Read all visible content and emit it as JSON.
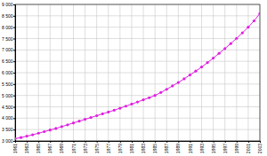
{
  "chart_data": {
    "type": "line",
    "x": [
      1961,
      1962,
      1963,
      1964,
      1965,
      1966,
      1967,
      1968,
      1969,
      1970,
      1971,
      1972,
      1973,
      1974,
      1975,
      1976,
      1977,
      1978,
      1979,
      1980,
      1981,
      1982,
      1983,
      1984,
      1985,
      1986,
      1987,
      1988,
      1989,
      1990,
      1991,
      1992,
      1993,
      1994,
      1995,
      1996,
      1997,
      1998,
      1999,
      2000,
      2001,
      2002,
      2003
    ],
    "values": [
      3100,
      3150,
      3210,
      3270,
      3340,
      3410,
      3480,
      3550,
      3630,
      3710,
      3790,
      3870,
      3950,
      4030,
      4110,
      4190,
      4270,
      4350,
      4440,
      4530,
      4620,
      4710,
      4810,
      4900,
      5000,
      5130,
      5270,
      5420,
      5570,
      5730,
      5900,
      6070,
      6250,
      6440,
      6640,
      6850,
      7060,
      7280,
      7510,
      7750,
      8000,
      8280,
      8600
    ],
    "color": "#e020e0",
    "marker": "circle",
    "grid": true,
    "xlim": [
      1961,
      2003
    ],
    "xticks": [
      1961,
      1963,
      1965,
      1967,
      1969,
      1971,
      1973,
      1975,
      1977,
      1979,
      1981,
      1983,
      1985,
      1987,
      1989,
      1991,
      1993,
      1995,
      1997,
      1999,
      2001,
      2003
    ],
    "ylim": [
      3000,
      9000
    ],
    "yticks": [
      {
        "value": 3000,
        "label": "3 000"
      },
      {
        "value": 3500,
        "label": "3 500"
      },
      {
        "value": 4000,
        "label": "4 000"
      },
      {
        "value": 4500,
        "label": "4 500"
      },
      {
        "value": 5000,
        "label": "5 000"
      },
      {
        "value": 5500,
        "label": "5 500"
      },
      {
        "value": 6000,
        "label": "6 000"
      },
      {
        "value": 6500,
        "label": "6 500"
      },
      {
        "value": 7000,
        "label": "7 000"
      },
      {
        "value": 7500,
        "label": "7 500"
      },
      {
        "value": 8000,
        "label": "8 000"
      },
      {
        "value": 8500,
        "label": "8 500"
      },
      {
        "value": 9000,
        "label": "9 000"
      }
    ]
  }
}
